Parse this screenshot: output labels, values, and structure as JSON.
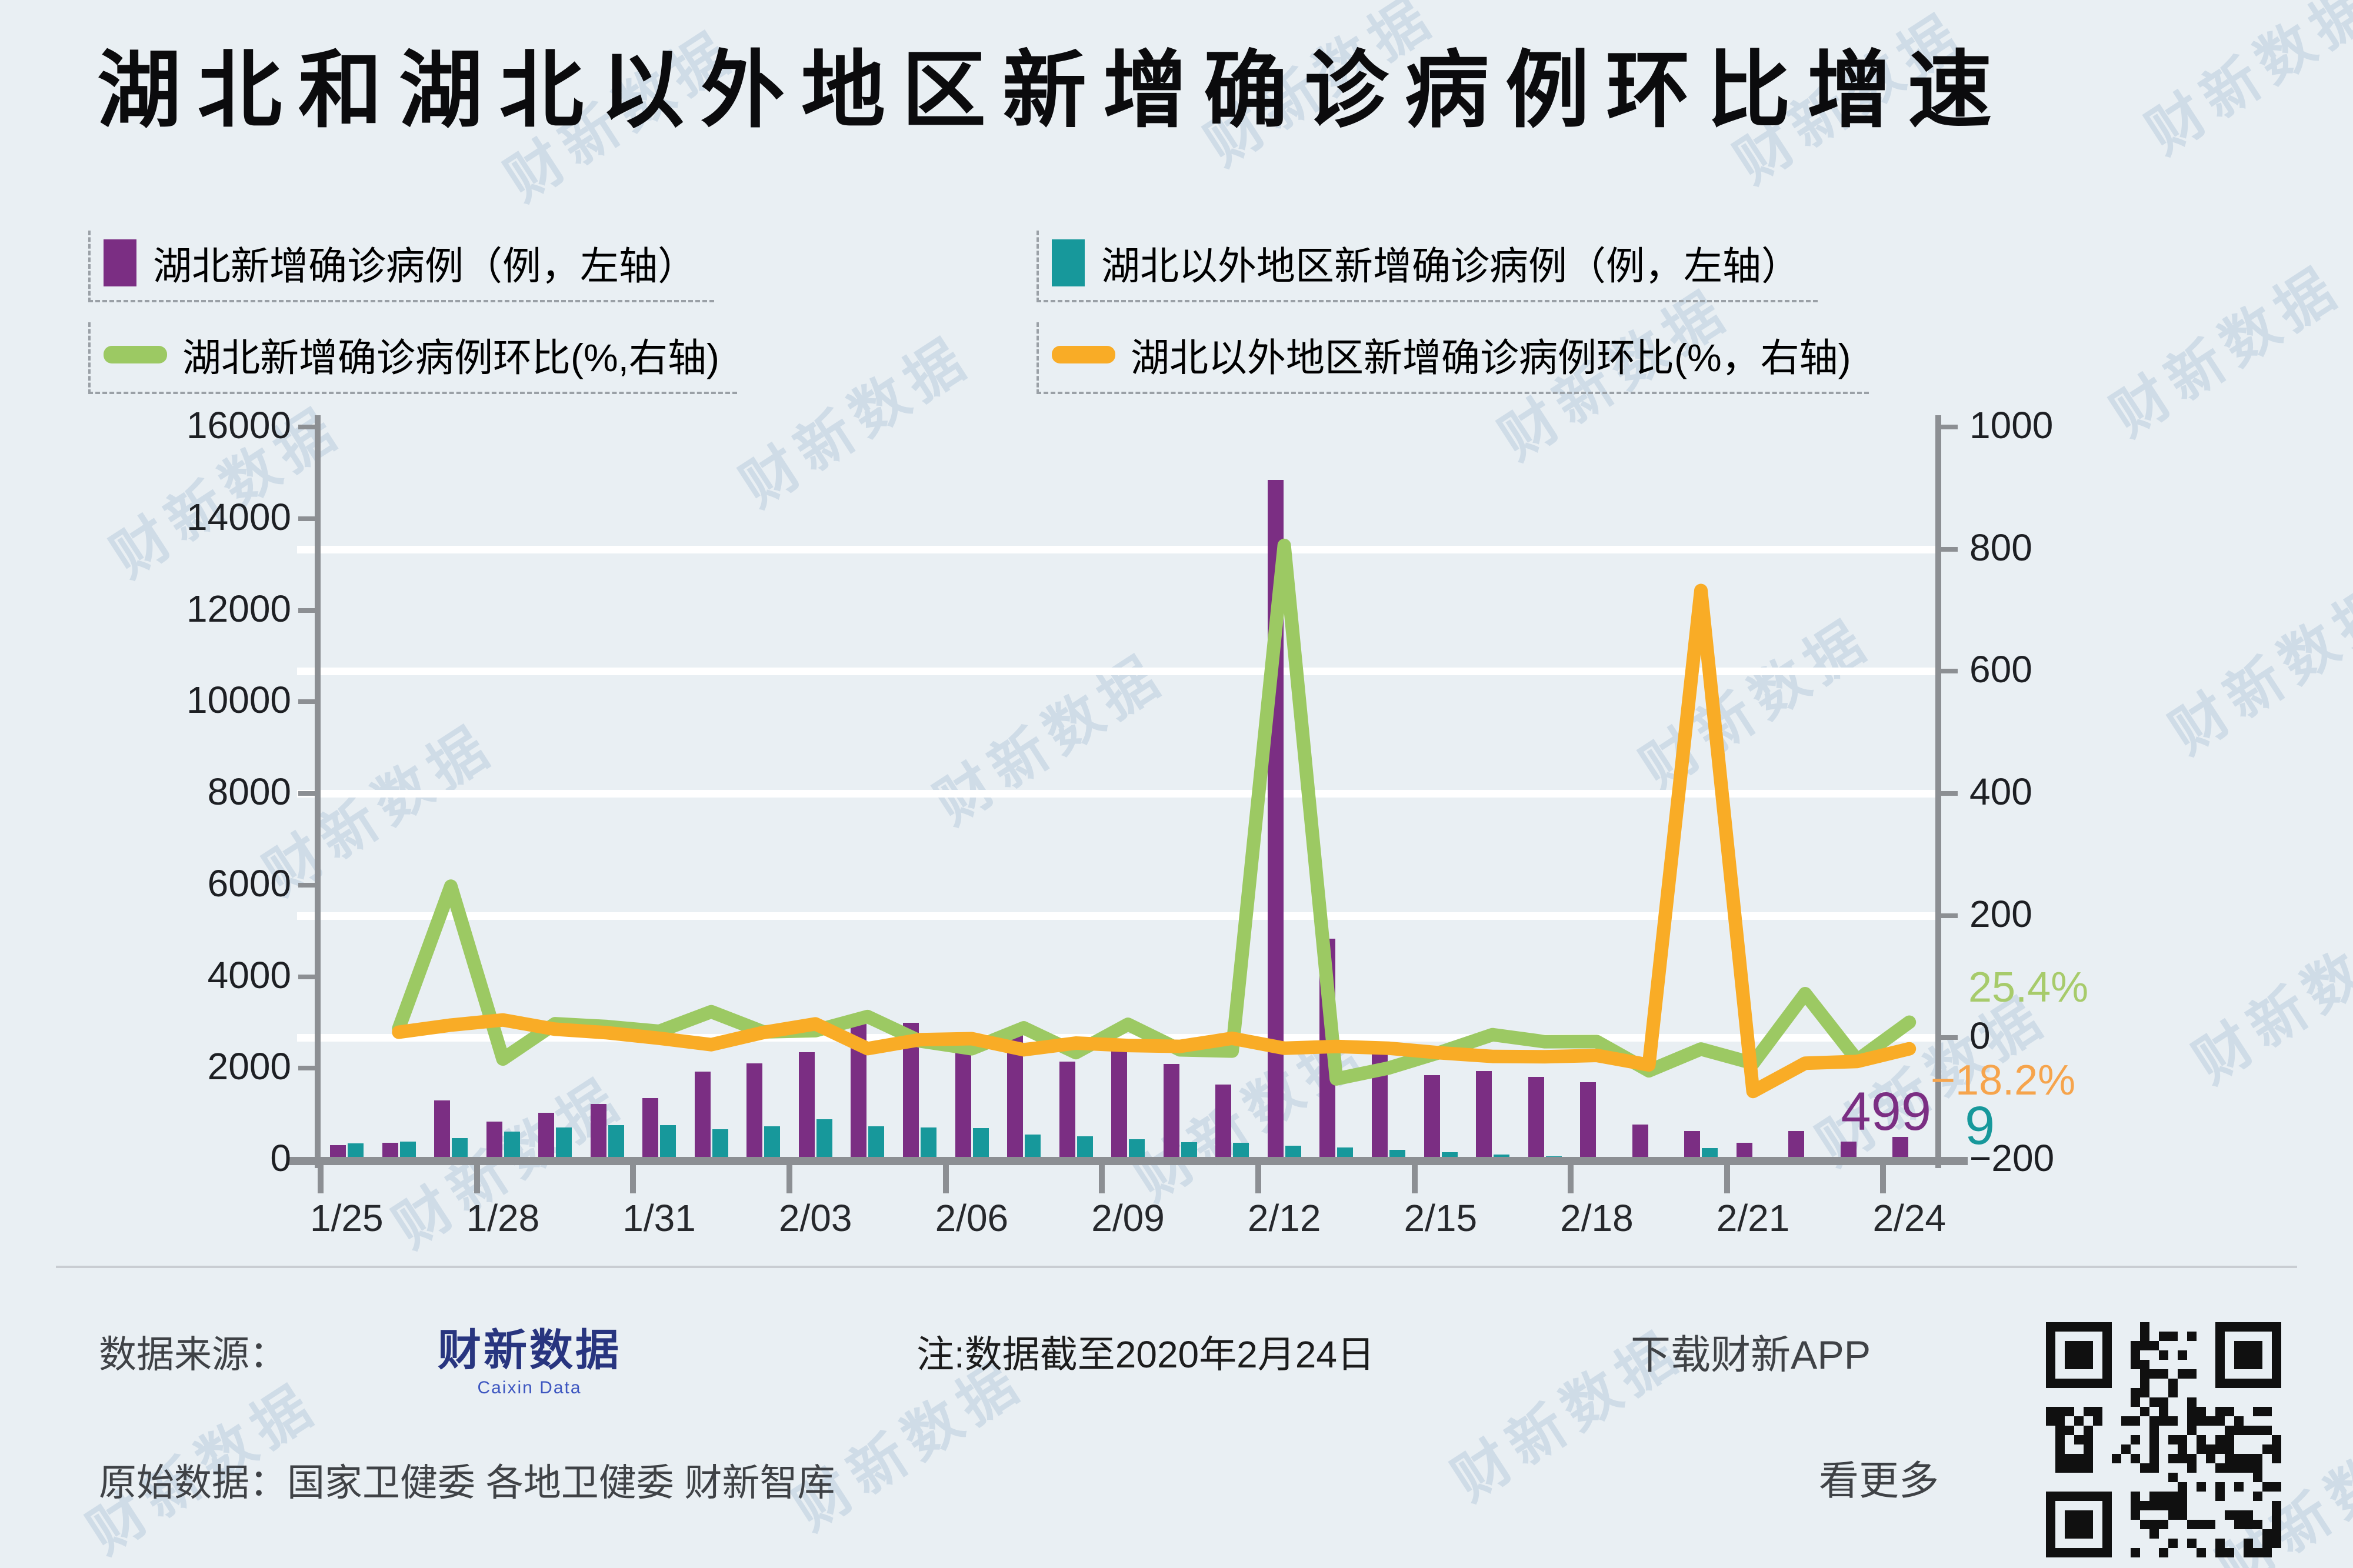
{
  "header": {
    "title": "湖北和湖北以外地区新增确诊病例环比增速"
  },
  "legend": {
    "items": [
      {
        "label": "湖北新增确诊病例（例，左轴）",
        "type": "bar",
        "color": "#7B2E83"
      },
      {
        "label": "湖北以外地区新增确诊病例（例，左轴）",
        "type": "bar",
        "color": "#17989B"
      },
      {
        "label": "湖北新增确诊病例环比(%,右轴)",
        "type": "line",
        "color": "#9CC963"
      },
      {
        "label": "湖北以外地区新增确诊病例环比(%，右轴)",
        "type": "line",
        "color": "#F9AC26"
      }
    ]
  },
  "chart_data": {
    "type": "combo-bar-line",
    "dates": [
      "1/25",
      "1/26",
      "1/27",
      "1/28",
      "1/29",
      "1/30",
      "1/31",
      "2/01",
      "2/02",
      "2/03",
      "2/04",
      "2/05",
      "2/06",
      "2/07",
      "2/08",
      "2/09",
      "2/10",
      "2/11",
      "2/12",
      "2/13",
      "2/14",
      "2/15",
      "2/16",
      "2/17",
      "2/18",
      "2/19",
      "2/20",
      "2/21",
      "2/22",
      "2/23",
      "2/24"
    ],
    "series": [
      {
        "name": "湖北新增确诊病例",
        "type": "bar",
        "axis": "left",
        "color": "#7B2E83",
        "values": [
          323,
          371,
          1291,
          840,
          1032,
          1220,
          1347,
          1921,
          2103,
          2345,
          3156,
          2987,
          2447,
          2841,
          2147,
          2618,
          2097,
          1638,
          14840,
          4823,
          2420,
          1843,
          1933,
          1807,
          1693,
          775,
          631,
          366,
          630,
          398,
          499
        ]
      },
      {
        "name": "湖北以外地区新增确诊病例",
        "type": "bar",
        "axis": "left",
        "color": "#17989B",
        "values": [
          365,
          398,
          480,
          619,
          705,
          762,
          755,
          669,
          726,
          890,
          731,
          707,
          696,
          558,
          509,
          444,
          381,
          377,
          312,
          267,
          221,
          166,
          115,
          79,
          56,
          31,
          258,
          31,
          18,
          11,
          9
        ]
      },
      {
        "name": "湖北新增确诊病例环比",
        "type": "line",
        "axis": "right",
        "color": "#9CC963",
        "values": [
          null,
          14.9,
          248.0,
          -34.9,
          22.9,
          18.2,
          10.4,
          42.6,
          9.5,
          11.5,
          34.6,
          -5.4,
          -18.1,
          16.1,
          -24.4,
          21.9,
          -19.9,
          -21.9,
          806.0,
          -67.5,
          -49.8,
          -23.8,
          4.9,
          -6.5,
          -6.3,
          -54.2,
          -18.6,
          -42.0,
          72.1,
          -36.8,
          25.4
        ]
      },
      {
        "name": "湖北以外地区新增确诊病例环比",
        "type": "line",
        "axis": "right",
        "color": "#F9AC26",
        "values": [
          null,
          9.0,
          20.6,
          29.0,
          13.9,
          8.1,
          -0.9,
          -11.4,
          8.5,
          22.6,
          -17.9,
          -3.3,
          -1.6,
          -19.8,
          -8.8,
          -12.8,
          -14.2,
          -1.0,
          -17.2,
          -14.4,
          -17.2,
          -24.9,
          -30.7,
          -31.3,
          -29.1,
          -44.6,
          732.3,
          -88.0,
          -41.9,
          -38.9,
          -18.2
        ]
      }
    ],
    "left_axis": {
      "min": 0,
      "max": 16000,
      "tick_labels": [
        "16000",
        "14000",
        "12000",
        "10000",
        "8000",
        "6000",
        "4000",
        "2000",
        "0"
      ]
    },
    "right_axis": {
      "min": -200,
      "max": 1000,
      "tick_labels": [
        "1000",
        "800",
        "600",
        "400",
        "200",
        "0",
        "−200"
      ]
    },
    "x_tick_labels": [
      "1/25",
      "1/28",
      "1/31",
      "2/03",
      "2/06",
      "2/09",
      "2/12",
      "2/15",
      "2/18",
      "2/21",
      "2/24"
    ],
    "grid": "white horizontal lines at right-axis 200-unit steps",
    "annotations": {
      "green": {
        "text": "25.4%",
        "color": "#A7CB6B"
      },
      "orange": {
        "text": "−18.2%",
        "color": "#F6A44C"
      },
      "purple": {
        "text": "499",
        "color": "#7B2E83"
      },
      "teal": {
        "text": "9",
        "color": "#17989B"
      }
    }
  },
  "footer": {
    "source_label": "数据来源：",
    "brand": "财新数据",
    "brand_sub": "Caixin Data",
    "note": "注:数据截至2020年2月24日",
    "app_link": "下载财新APP",
    "raw_label": "原始数据：",
    "raw_value": "国家卫健委 各地卫健委 财新智库",
    "more_link": "看更多"
  },
  "watermark": {
    "text": "财新数据"
  }
}
